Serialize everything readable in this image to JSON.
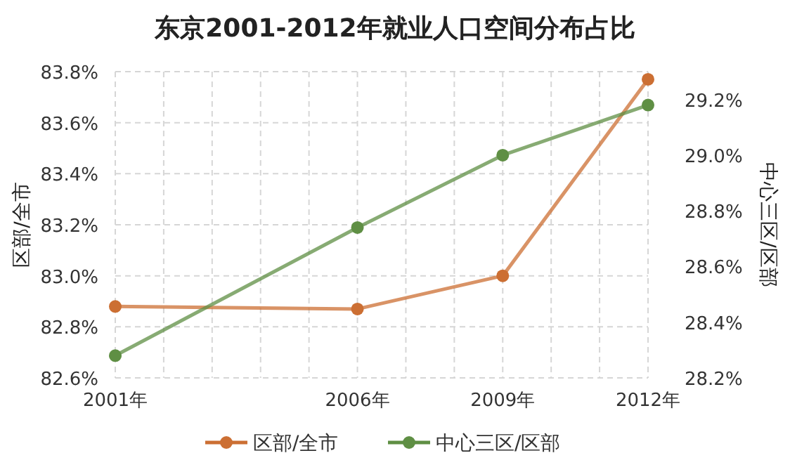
{
  "chart_data": {
    "type": "line",
    "title": "东京2001-2012年就业人口空间分布占比",
    "ylabel": "区部/全市",
    "y2label": "中心三区/区部",
    "x": [
      2001,
      2006,
      2009,
      2012
    ],
    "series": [
      {
        "name": "区部/全市",
        "color": "#cc6f33",
        "values": [
          82.88,
          82.87,
          83.0,
          83.77
        ]
      },
      {
        "name": "中心三区/区部",
        "color": "#5f8f44",
        "axis": "y2",
        "values": [
          28.28,
          28.74,
          29.0,
          29.18
        ]
      }
    ],
    "xlim": [
      2001,
      2012
    ],
    "xticks": [
      {
        "value": 2001,
        "label": "2001年"
      },
      {
        "value": 2002,
        "label": null
      },
      {
        "value": 2003,
        "label": null
      },
      {
        "value": 2004,
        "label": null
      },
      {
        "value": 2005,
        "label": null
      },
      {
        "value": 2006,
        "label": "2006年"
      },
      {
        "value": 2007,
        "label": null
      },
      {
        "value": 2008,
        "label": null
      },
      {
        "value": 2009,
        "label": "2009年"
      },
      {
        "value": 2010,
        "label": null
      },
      {
        "value": 2011,
        "label": null
      },
      {
        "value": 2012,
        "label": "2012年"
      }
    ],
    "ylim": [
      82.6,
      83.8
    ],
    "yticks": [
      {
        "value": 82.6,
        "label": "82.6%"
      },
      {
        "value": 82.8,
        "label": "82.8%"
      },
      {
        "value": 83.0,
        "label": "83.0%"
      },
      {
        "value": 83.2,
        "label": "83.2%"
      },
      {
        "value": 83.4,
        "label": "83.4%"
      },
      {
        "value": 83.6,
        "label": "83.6%"
      },
      {
        "value": 83.8,
        "label": "83.8%"
      }
    ],
    "y2lim": [
      28.2,
      29.3
    ],
    "y2ticks": [
      {
        "value": 28.2,
        "label": "28.2%"
      },
      {
        "value": 28.4,
        "label": "28.4%"
      },
      {
        "value": 28.6,
        "label": "28.6%"
      },
      {
        "value": 28.8,
        "label": "28.8%"
      },
      {
        "value": 29.0,
        "label": "29.0%"
      },
      {
        "value": 29.2,
        "label": "29.2%"
      }
    ],
    "grid": true,
    "legend": "bottom",
    "marker": "circle",
    "line_style": "solid"
  }
}
